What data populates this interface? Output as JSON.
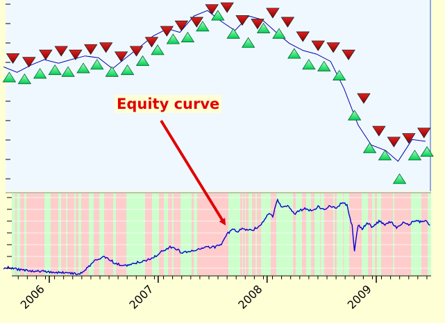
{
  "chart_data": [
    {
      "type": "scatter",
      "panel": "price",
      "colors": {
        "buy_marker": "#00e85a",
        "sell_marker": "#b40000",
        "price_line": "#0000aa",
        "background": "#f0f8ff"
      },
      "ylim": [
        0,
        100
      ],
      "series": [
        {
          "role": "price",
          "x": [
            "2005-08-01",
            "2005-09-15",
            "2005-11-01",
            "2005-12-15",
            "2006-02-01",
            "2006-03-15",
            "2006-05-01",
            "2006-06-15",
            "2006-08-01",
            "2006-09-15",
            "2006-11-01",
            "2006-12-15",
            "2007-02-01",
            "2007-03-15",
            "2007-05-01",
            "2007-06-15",
            "2007-08-01",
            "2007-09-15",
            "2007-11-01",
            "2007-12-15",
            "2008-02-01",
            "2008-03-15",
            "2008-05-01",
            "2008-06-15",
            "2008-08-01",
            "2008-09-15",
            "2008-11-01",
            "2008-12-15",
            "2009-02-01",
            "2009-03-15",
            "2009-05-01",
            "2009-06-15"
          ],
          "y": [
            67,
            64,
            68,
            71,
            69,
            71,
            73,
            72,
            66,
            72,
            78,
            84,
            88,
            86,
            95,
            98,
            92,
            87,
            95,
            93,
            86,
            80,
            76,
            74,
            70,
            55,
            35,
            24,
            21,
            15,
            27,
            26
          ]
        },
        {
          "role": "buy",
          "x": [
            "2005-08-20",
            "2005-10-10",
            "2005-12-01",
            "2006-01-20",
            "2006-03-05",
            "2006-04-25",
            "2006-06-10",
            "2006-07-30",
            "2006-09-20",
            "2006-11-10",
            "2006-12-30",
            "2007-02-20",
            "2007-04-10",
            "2007-05-30",
            "2007-07-20",
            "2007-09-10",
            "2007-10-30",
            "2007-12-20",
            "2008-02-10",
            "2008-04-01",
            "2008-05-20",
            "2008-07-10",
            "2008-08-30",
            "2008-10-20",
            "2008-12-10",
            "2009-01-30",
            "2009-03-20",
            "2009-05-10",
            "2009-06-20"
          ],
          "y": [
            61,
            60,
            63,
            65,
            64,
            66,
            68,
            64,
            65,
            70,
            76,
            82,
            83,
            89,
            95,
            85,
            80,
            88,
            85,
            74,
            68,
            67,
            62,
            40,
            22,
            18,
            5,
            18,
            20
          ]
        },
        {
          "role": "sell",
          "x": [
            "2005-09-01",
            "2005-10-25",
            "2005-12-20",
            "2006-02-10",
            "2006-03-30",
            "2006-05-20",
            "2006-07-10",
            "2006-08-30",
            "2006-10-20",
            "2006-12-10",
            "2007-01-30",
            "2007-03-20",
            "2007-05-10",
            "2007-06-30",
            "2007-08-20",
            "2007-10-10",
            "2007-11-30",
            "2008-01-20",
            "2008-03-10",
            "2008-04-30",
            "2008-06-20",
            "2008-08-10",
            "2008-09-30",
            "2008-11-20",
            "2009-01-10",
            "2009-03-01",
            "2009-04-20",
            "2009-06-10"
          ],
          "y": [
            72,
            70,
            74,
            76,
            74,
            77,
            78,
            73,
            76,
            81,
            87,
            90,
            92,
            99,
            100,
            93,
            91,
            97,
            92,
            84,
            79,
            78,
            74,
            50,
            32,
            26,
            28,
            31
          ]
        }
      ]
    },
    {
      "type": "line",
      "panel": "equity",
      "xlim": [
        "2005-07-20",
        "2009-07-05"
      ],
      "x_tick_labels": [
        "2006",
        "2007",
        "2008",
        "2009"
      ],
      "x_tick_dates": [
        "2006-01-01",
        "2007-01-01",
        "2008-01-01",
        "2009-01-01"
      ],
      "ylim": [
        0,
        100
      ],
      "colors": {
        "line": "#0000cc",
        "long_band": "#ccffcc",
        "short_band": "#ffcccc",
        "grid": "#ffffff"
      },
      "series": [
        {
          "x": [
            "2005-08-01",
            "2005-08-20",
            "2005-09-10",
            "2005-10-01",
            "2005-10-25",
            "2005-11-20",
            "2005-12-15",
            "2006-01-10",
            "2006-02-05",
            "2006-03-01",
            "2006-03-25",
            "2006-04-10",
            "2006-04-20",
            "2006-05-10",
            "2006-06-01",
            "2006-06-20",
            "2006-07-05",
            "2006-07-20",
            "2006-08-10",
            "2006-09-01",
            "2006-09-25",
            "2006-10-20",
            "2006-11-15",
            "2006-12-10",
            "2007-01-01",
            "2007-01-20",
            "2007-02-10",
            "2007-03-01",
            "2007-03-20",
            "2007-04-10",
            "2007-05-01",
            "2007-05-20",
            "2007-06-15",
            "2007-07-10",
            "2007-08-01",
            "2007-08-20",
            "2007-09-10",
            "2007-09-25",
            "2007-10-10",
            "2007-10-25",
            "2007-11-15",
            "2007-12-05",
            "2007-12-20",
            "2008-01-05",
            "2008-01-20",
            "2008-02-05",
            "2008-02-20",
            "2008-03-10",
            "2008-04-01",
            "2008-04-20",
            "2008-05-10",
            "2008-06-01",
            "2008-06-20",
            "2008-07-10",
            "2008-07-30",
            "2008-08-20",
            "2008-09-10",
            "2008-09-25",
            "2008-10-05",
            "2008-10-12",
            "2008-10-20",
            "2008-11-01",
            "2008-11-15",
            "2008-12-01",
            "2008-12-20",
            "2009-01-10",
            "2009-01-30",
            "2009-02-20",
            "2009-03-10",
            "2009-04-01",
            "2009-04-20",
            "2009-05-10",
            "2009-05-30",
            "2009-06-15",
            "2009-06-30"
          ],
          "y": [
            8,
            9,
            7,
            6,
            5,
            4,
            4,
            3,
            2,
            3,
            1,
            0,
            2,
            9,
            17,
            21,
            23,
            20,
            14,
            12,
            12,
            15,
            17,
            20,
            26,
            31,
            35,
            33,
            28,
            29,
            31,
            33,
            35,
            35,
            39,
            52,
            58,
            55,
            59,
            57,
            57,
            62,
            68,
            78,
            74,
            96,
            85,
            88,
            77,
            82,
            84,
            81,
            87,
            82,
            88,
            85,
            92,
            88,
            71,
            62,
            30,
            63,
            58,
            66,
            60,
            68,
            64,
            68,
            59,
            66,
            64,
            69,
            67,
            70,
            63
          ]
        }
      ]
    }
  ],
  "annotation": {
    "text": "Equity curve"
  }
}
